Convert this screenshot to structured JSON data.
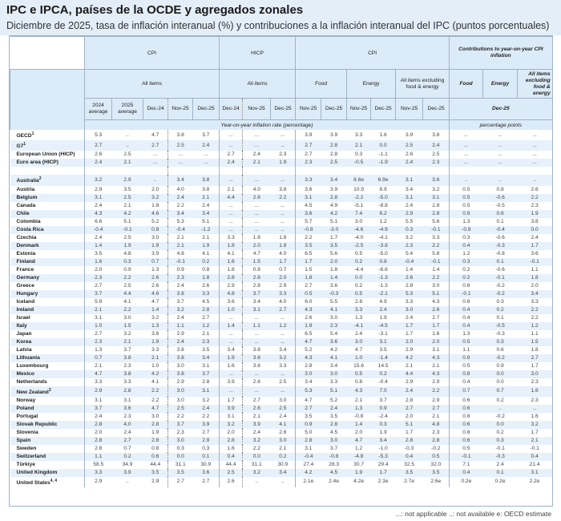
{
  "title": "IPC e IPCA, países de la OCDE y agregados zonales",
  "subtitle": "Diciembre de 2025, tasa de inflación interanual (%) y contribuciones a la inflación interanual del IPC (puntos porcentuales)",
  "header": {
    "groups": [
      "CPI",
      "HICP",
      "CPI",
      "Contributions to year-on-year CPI inflation"
    ],
    "subgroups": [
      "All items",
      "All items",
      "Food",
      "Energy",
      "All items excluding food & energy",
      "Food",
      "Energy",
      "All items excluding food & energy"
    ],
    "periods": [
      "2024 average",
      "2025 average",
      "Dec-24",
      "Nov-25",
      "Dec-25",
      "Dec-24",
      "Nov-25",
      "Dec-25",
      "Nov-25",
      "Dec-25",
      "Nov-25",
      "Dec-25",
      "Nov-25",
      "Dec-25",
      "Dec-25"
    ],
    "units": [
      "Year-on-year inflation rate (percentage)",
      "percentage points"
    ]
  },
  "rows": [
    {
      "label": "OECD",
      "sup": "1",
      "v": [
        "5.3",
        "..",
        "4.7",
        "3.8",
        "3.7",
        "...",
        "...",
        "...",
        "3.9",
        "3.9",
        "3.3",
        "1.6",
        "3.9",
        "3.8",
        "...",
        "...",
        "..."
      ]
    },
    {
      "label": "G7",
      "sup": "1",
      "v": [
        "2.7",
        "..",
        "2.7",
        "2.5",
        "2.4",
        "...",
        "...",
        "...",
        "2.7",
        "2.8",
        "2.1",
        "0.0",
        "2.5",
        "2.4",
        "...",
        "...",
        "..."
      ]
    },
    {
      "label": "European Union (HICP)",
      "sup": "",
      "v": [
        "2.6",
        "2.5",
        "...",
        "...",
        "...",
        "2.7",
        "2.4",
        "2.3",
        "2.7",
        "2.8",
        "0.3",
        "-1.1",
        "2.6",
        "2.5",
        "...",
        "...",
        "..."
      ]
    },
    {
      "label": "Euro area (HICP)",
      "sup": "",
      "v": [
        "2.4",
        "2.1",
        "...",
        "...",
        "...",
        "2.4",
        "2.1",
        "1.9",
        "2.3",
        "2.5",
        "-0.5",
        "-1.9",
        "2.4",
        "2.3",
        "...",
        "...",
        "..."
      ]
    },
    {
      "label": "",
      "sup": "",
      "v": [
        "",
        "",
        "",
        "",
        "",
        "",
        "",
        "",
        "",
        "",
        "",
        "",
        "",
        "",
        "",
        "",
        ""
      ]
    },
    {
      "label": "Australia",
      "sup": "2",
      "v": [
        "3.2",
        "2.9",
        "..",
        "3.4",
        "3.8",
        "...",
        "...",
        "...",
        "3.3",
        "3.4",
        "8.6e",
        "6.9e",
        "3.1",
        "3.6",
        "..",
        "..",
        ".."
      ]
    },
    {
      "label": "Austria",
      "sup": "",
      "v": [
        "2.9",
        "3.5",
        "2.0",
        "4.0",
        "3.8",
        "2.1",
        "4.0",
        "3.8",
        "3.6",
        "3.9",
        "10.9",
        "8.9",
        "3.4",
        "3.2",
        "0.5",
        "0.8",
        "2.6"
      ]
    },
    {
      "label": "Belgium",
      "sup": "",
      "v": [
        "3.1",
        "2.5",
        "3.2",
        "2.4",
        "2.1",
        "4.4",
        "2.6",
        "2.2",
        "3.1",
        "2.8",
        "-2.2",
        "-5.0",
        "3.1",
        "3.1",
        "0.5",
        "-0.6",
        "2.2"
      ]
    },
    {
      "label": "Canada",
      "sup": "",
      "v": [
        "2.4",
        "2.1",
        "1.8",
        "2.2",
        "2.4",
        "...",
        "...",
        "...",
        "4.5",
        "4.9",
        "-5.1",
        "-8.8",
        "2.4",
        "2.8",
        "0.5",
        "-0.5",
        "2.3"
      ]
    },
    {
      "label": "Chile",
      "sup": "",
      "v": [
        "4.3",
        "4.2",
        "4.6",
        "3.4",
        "3.4",
        "...",
        "...",
        "...",
        "3.6",
        "4.2",
        "7.4",
        "6.2",
        "2.9",
        "2.8",
        "0.9",
        "0.6",
        "1.9"
      ]
    },
    {
      "label": "Colombia",
      "sup": "",
      "v": [
        "6.6",
        "5.1",
        "5.2",
        "5.3",
        "5.1",
        "...",
        "...",
        "...",
        "5.7",
        "5.1",
        "3.0",
        "1.2",
        "5.5",
        "5.6",
        "1.3",
        "0.1",
        "3.8"
      ]
    },
    {
      "label": "Costa Rica",
      "sup": "",
      "v": [
        "-0.4",
        "-0.1",
        "0.8",
        "-0.4",
        "-1.2",
        "...",
        "...",
        "...",
        "-0.8",
        "-3.0",
        "-4.6",
        "-4.9",
        "0.3",
        "-0.1",
        "-0.8",
        "-0.4",
        "0.0"
      ]
    },
    {
      "label": "Czechia",
      "sup": "",
      "v": [
        "2.4",
        "2.5",
        "3.0",
        "2.1",
        "2.1",
        "3.3",
        "1.8",
        "1.8",
        "2.2",
        "1.7",
        "-4.0",
        "-4.1",
        "3.2",
        "3.3",
        "0.3",
        "-0.6",
        "2.4"
      ]
    },
    {
      "label": "Denmark",
      "sup": "",
      "v": [
        "1.4",
        "1.9",
        "1.9",
        "2.1",
        "1.9",
        "1.8",
        "2.0",
        "1.9",
        "3.5",
        "3.5",
        "-2.5",
        "-3.8",
        "2.3",
        "2.2",
        "0.4",
        "-0.3",
        "1.7"
      ]
    },
    {
      "label": "Estonia",
      "sup": "",
      "v": [
        "3.5",
        "4.8",
        "3.9",
        "4.8",
        "4.1",
        "4.1",
        "4.7",
        "4.0",
        "6.5",
        "5.6",
        "0.5",
        "-5.0",
        "5.4",
        "5.8",
        "1.2",
        "-0.8",
        "3.6"
      ]
    },
    {
      "label": "Finland",
      "sup": "",
      "v": [
        "1.6",
        "0.3",
        "0.7",
        "-0.1",
        "0.2",
        "1.6",
        "1.5",
        "1.7",
        "1.7",
        "2.0",
        "0.2",
        "0.8",
        "-0.4",
        "-0.1",
        "0.3",
        "0.1",
        "-0.1"
      ]
    },
    {
      "label": "France",
      "sup": "",
      "v": [
        "2.0",
        "0.9",
        "1.3",
        "0.9",
        "0.8",
        "1.8",
        "0.8",
        "0.7",
        "1.5",
        "1.8",
        "-4.4",
        "-6.6",
        "1.4",
        "1.4",
        "0.2",
        "-0.6",
        "1.1"
      ]
    },
    {
      "label": "Germany",
      "sup": "",
      "v": [
        "2.3",
        "2.2",
        "2.6",
        "2.3",
        "1.8",
        "2.8",
        "2.6",
        "2.0",
        "1.8",
        "1.4",
        "0.0",
        "-1.3",
        "2.6",
        "2.2",
        "0.2",
        "-0.1",
        "1.8"
      ]
    },
    {
      "label": "Greece",
      "sup": "",
      "v": [
        "2.7",
        "2.5",
        "2.6",
        "2.4",
        "2.6",
        "2.9",
        "2.8",
        "2.9",
        "2.7",
        "3.6",
        "0.2",
        "-1.3",
        "2.8",
        "3.0",
        "0.8",
        "-0.2",
        "2.0"
      ]
    },
    {
      "label": "Hungary",
      "sup": "",
      "v": [
        "3.7",
        "4.4",
        "4.6",
        "3.8",
        "3.3",
        "4.8",
        "3.7",
        "3.3",
        "0.5",
        "-0.3",
        "0.5",
        "-2.1",
        "5.3",
        "5.1",
        "-0.1",
        "-0.2",
        "3.4"
      ]
    },
    {
      "label": "Iceland",
      "sup": "",
      "v": [
        "5.9",
        "4.1",
        "4.7",
        "3.7",
        "4.5",
        "3.6",
        "3.4",
        "4.0",
        "6.0",
        "5.5",
        "2.8",
        "4.9",
        "3.3",
        "4.3",
        "0.8",
        "0.3",
        "3.3"
      ]
    },
    {
      "label": "Ireland",
      "sup": "",
      "v": [
        "2.1",
        "2.2",
        "1.4",
        "3.2",
        "2.8",
        "1.0",
        "3.1",
        "2.7",
        "4.3",
        "4.1",
        "3.3",
        "2.4",
        "3.0",
        "2.6",
        "0.4",
        "0.2",
        "2.2"
      ]
    },
    {
      "label": "Israel",
      "sup": "",
      "v": [
        "3.1",
        "3.0",
        "3.2",
        "2.4",
        "2.7",
        "...",
        "...",
        "...",
        "2.6",
        "3.0",
        "1.3",
        "1.9",
        "2.4",
        "2.7",
        "0.4",
        "0.1",
        "2.2"
      ]
    },
    {
      "label": "Italy",
      "sup": "",
      "v": [
        "1.0",
        "1.5",
        "1.3",
        "1.1",
        "1.2",
        "1.4",
        "1.1",
        "1.2",
        "1.9",
        "2.3",
        "-4.1",
        "-4.5",
        "1.7",
        "1.7",
        "0.4",
        "-0.5",
        "1.2"
      ]
    },
    {
      "label": "Japan",
      "sup": "",
      "v": [
        "2.7",
        "3.2",
        "3.6",
        "2.9",
        "2.1",
        "...",
        "...",
        "...",
        "6.5",
        "5.4",
        "2.4",
        "-3.1",
        "1.7",
        "1.6",
        "1.3",
        "-0.3",
        "1.1"
      ]
    },
    {
      "label": "Korea",
      "sup": "",
      "v": [
        "2.3",
        "2.1",
        "1.9",
        "2.4",
        "2.3",
        "...",
        "...",
        "...",
        "4.7",
        "3.6",
        "3.0",
        "3.1",
        "2.0",
        "2.0",
        "0.5",
        "0.3",
        "1.5"
      ]
    },
    {
      "label": "Latvia",
      "sup": "",
      "v": [
        "1.3",
        "3.7",
        "3.3",
        "3.8",
        "3.5",
        "3.4",
        "3.8",
        "3.4",
        "5.2",
        "4.2",
        "4.7",
        "3.5",
        "2.9",
        "3.1",
        "1.1",
        "0.6",
        "1.8"
      ]
    },
    {
      "label": "Lithuania",
      "sup": "",
      "v": [
        "0.7",
        "3.8",
        "2.1",
        "3.8",
        "3.4",
        "1.9",
        "3.6",
        "3.2",
        "4.3",
        "4.1",
        "1.0",
        "-1.4",
        "4.2",
        "4.3",
        "0.9",
        "-0.2",
        "2.7"
      ]
    },
    {
      "label": "Luxembourg",
      "sup": "",
      "v": [
        "2.1",
        "2.3",
        "1.0",
        "3.0",
        "3.1",
        "1.6",
        "3.6",
        "3.3",
        "2.8",
        "3.4",
        "15.6",
        "14.5",
        "2.1",
        "2.1",
        "0.5",
        "0.9",
        "1.7"
      ]
    },
    {
      "label": "Mexico",
      "sup": "",
      "v": [
        "4.7",
        "3.8",
        "4.2",
        "3.8",
        "3.7",
        "...",
        "...",
        "...",
        "3.0",
        "3.0",
        "0.5",
        "0.2",
        "4.4",
        "4.3",
        "0.8",
        "0.0",
        "3.0"
      ]
    },
    {
      "label": "Netherlands",
      "sup": "",
      "v": [
        "3.3",
        "3.3",
        "4.1",
        "2.9",
        "2.8",
        "3.9",
        "2.6",
        "2.5",
        "3.4",
        "3.3",
        "0.8",
        "-0.4",
        "2.9",
        "2.9",
        "0.4",
        "0.0",
        "2.3"
      ]
    },
    {
      "label": "New Zealand",
      "sup": "3",
      "v": [
        "2.9",
        "2.8",
        "2.2",
        "3.0",
        "3.1",
        "...",
        "...",
        "...",
        "5.3",
        "5.1",
        "4.3",
        "7.0",
        "2.4",
        "2.2",
        "0.7",
        "0.7",
        "1.6"
      ]
    },
    {
      "label": "Norway",
      "sup": "",
      "v": [
        "3.1",
        "3.1",
        "2.2",
        "3.0",
        "3.2",
        "1.7",
        "2.7",
        "3.0",
        "4.7",
        "5.2",
        "2.1",
        "3.7",
        "2.8",
        "2.9",
        "0.6",
        "0.2",
        "2.3"
      ]
    },
    {
      "label": "Poland",
      "sup": "",
      "v": [
        "3.7",
        "3.6",
        "4.7",
        "2.5",
        "2.4",
        "3.9",
        "2.6",
        "2.5",
        "2.7",
        "2.4",
        "1.3",
        "0.9",
        "2.7",
        "2.7",
        "0.6",
        "..",
        ".."
      ]
    },
    {
      "label": "Portugal",
      "sup": "",
      "v": [
        "2.4",
        "2.3",
        "3.0",
        "2.2",
        "2.2",
        "3.1",
        "2.1",
        "2.4",
        "3.5",
        "3.5",
        "-0.8",
        "-2.4",
        "2.0",
        "2.1",
        "0.8",
        "-0.2",
        "1.6"
      ]
    },
    {
      "label": "Slovak Republic",
      "sup": "",
      "v": [
        "2.8",
        "4.0",
        "2.8",
        "3.7",
        "3.9",
        "3.2",
        "3.9",
        "4.1",
        "0.9",
        "2.8",
        "1.4",
        "0.3",
        "5.1",
        "4.8",
        "0.6",
        "0.0",
        "3.2"
      ]
    },
    {
      "label": "Slovenia",
      "sup": "",
      "v": [
        "2.0",
        "2.4",
        "1.9",
        "2.3",
        "2.7",
        "2.0",
        "2.4",
        "2.6",
        "5.0",
        "4.5",
        "2.0",
        "1.9",
        "1.7",
        "2.3",
        "0.8",
        "0.2",
        "1.7"
      ]
    },
    {
      "label": "Spain",
      "sup": "",
      "v": [
        "2.8",
        "2.7",
        "2.8",
        "3.0",
        "2.9",
        "2.8",
        "3.2",
        "3.0",
        "2.8",
        "3.0",
        "4.7",
        "3.4",
        "2.8",
        "2.8",
        "0.6",
        "0.3",
        "2.1"
      ]
    },
    {
      "label": "Sweden",
      "sup": "",
      "v": [
        "2.8",
        "0.7",
        "0.8",
        "0.3",
        "0.3",
        "1.6",
        "2.2",
        "2.1",
        "3.1",
        "3.7",
        "1.2",
        "-1.0",
        "-0.3",
        "-0.2",
        "0.5",
        "-0.1",
        "-0.1"
      ]
    },
    {
      "label": "Switzerland",
      "sup": "",
      "v": [
        "1.1",
        "0.2",
        "0.6",
        "0.0",
        "0.1",
        "0.4",
        "0.0",
        "0.2",
        "-0.4",
        "-0.8",
        "-4.8",
        "-5.3",
        "0.4",
        "0.5",
        "-0.1",
        "-0.3",
        "0.4"
      ]
    },
    {
      "label": "Türkiye",
      "sup": "",
      "v": [
        "58.5",
        "34.9",
        "44.4",
        "31.1",
        "30.9",
        "44.4",
        "31.1",
        "30.9",
        "27.4",
        "28.3",
        "30.7",
        "29.4",
        "32.5",
        "32.0",
        "7.1",
        "2.4",
        "21.4"
      ]
    },
    {
      "label": "United Kingdom",
      "sup": "",
      "v": [
        "3.3",
        "3.9",
        "3.5",
        "3.5",
        "3.6",
        "2.5",
        "3.2",
        "3.4",
        "4.2",
        "4.5",
        "1.9",
        "1.7",
        "3.5",
        "3.5",
        "0.4",
        "0.1",
        "3.1"
      ]
    },
    {
      "label": "United States",
      "sup": "4, 4",
      "v": [
        "2.9",
        "..",
        "2.9",
        "2.7",
        "2.7",
        "2.6",
        "..",
        "..",
        "2.1e",
        "2.4e",
        "4.2e",
        "2.3e",
        "2.7e",
        "2.6e",
        "0.2e",
        "0.2e",
        "2.2e"
      ]
    }
  ],
  "footnote": "...: not applicable  ..: not available  e: OECD estimate"
}
